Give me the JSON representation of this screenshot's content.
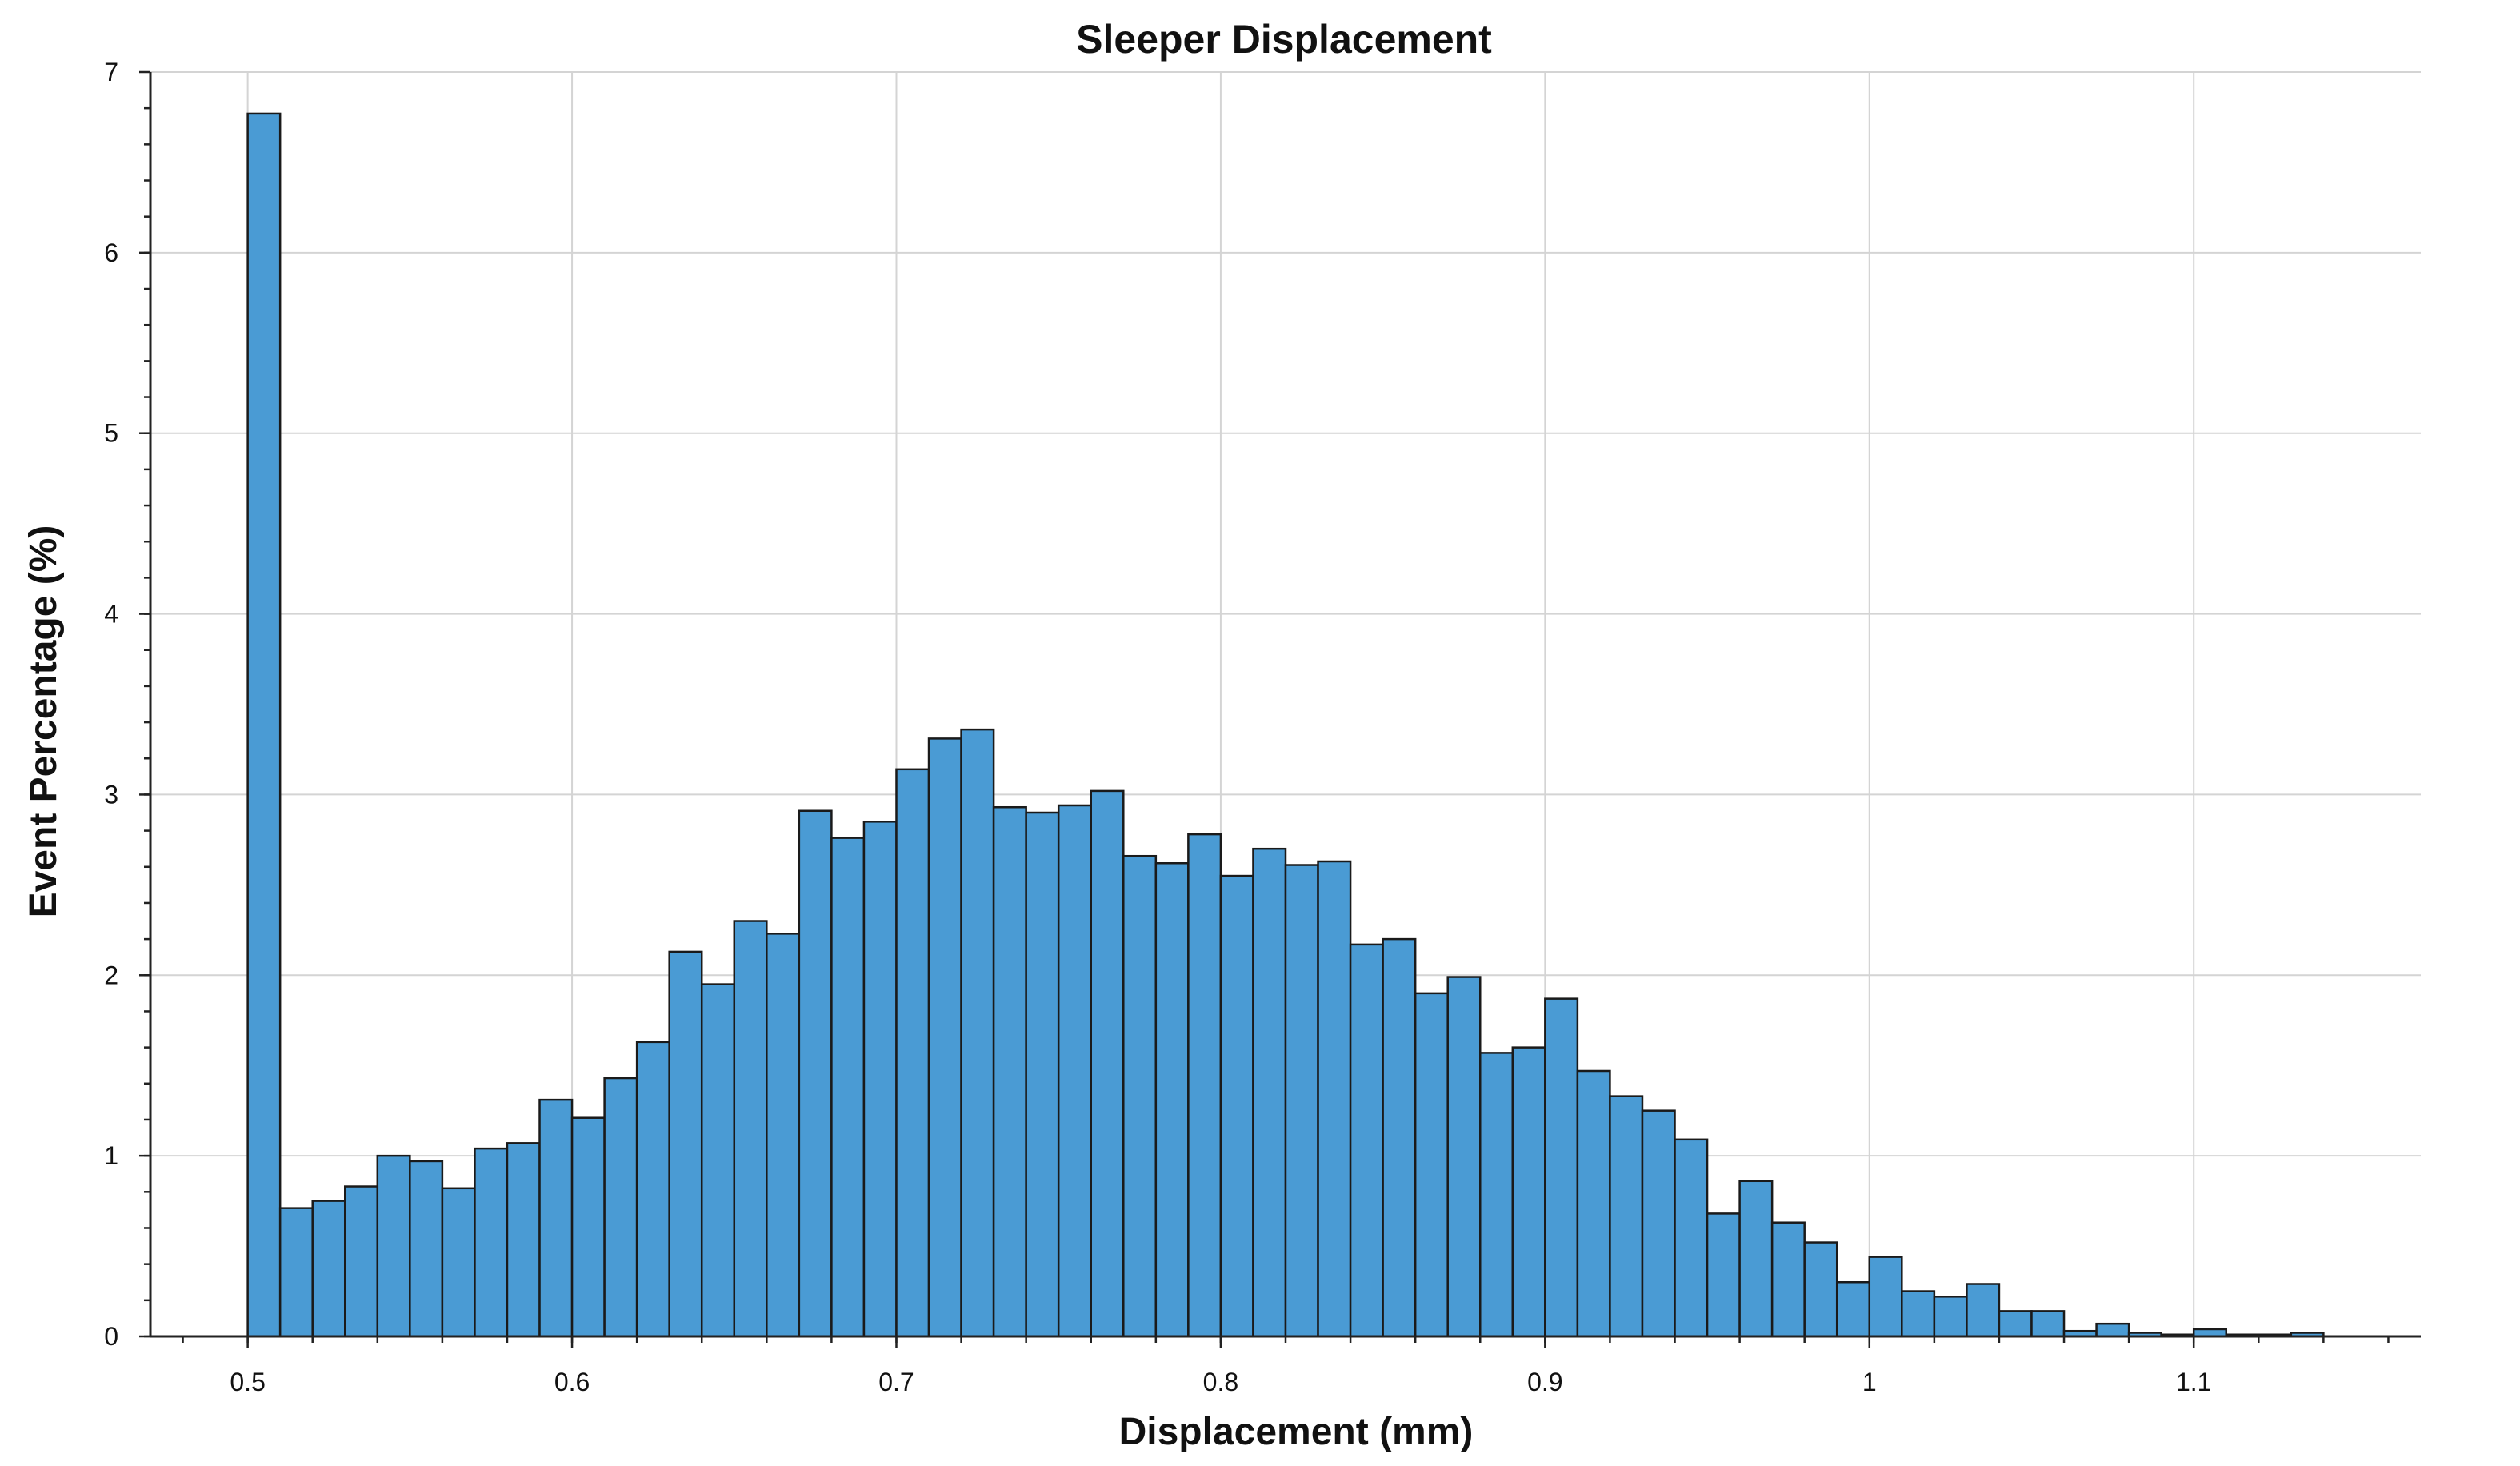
{
  "chart_data": {
    "type": "bar",
    "title": "Sleeper Displacement",
    "xlabel": "Displacement (mm)",
    "ylabel": "Event Percentage (%)",
    "xlim": [
      0.47,
      1.17
    ],
    "ylim": [
      0,
      7
    ],
    "x_ticks": [
      0.5,
      0.6,
      0.7,
      0.8,
      0.9,
      1,
      1.1
    ],
    "x_tick_labels": [
      "0.5",
      "0.6",
      "0.7",
      "0.8",
      "0.9",
      "1",
      "1.1"
    ],
    "y_ticks": [
      0,
      1,
      2,
      3,
      4,
      5,
      6,
      7
    ],
    "y_tick_labels": [
      "0",
      "1",
      "2",
      "3",
      "4",
      "5",
      "6",
      "7"
    ],
    "grid": true,
    "bar_color": "#4a9bd4",
    "bin_width": 0.01,
    "bin_starts": [
      0.5,
      0.51,
      0.52,
      0.53,
      0.54,
      0.55,
      0.56,
      0.57,
      0.58,
      0.59,
      0.6,
      0.61,
      0.62,
      0.63,
      0.64,
      0.65,
      0.66,
      0.67,
      0.68,
      0.69,
      0.7,
      0.71,
      0.72,
      0.73,
      0.74,
      0.75,
      0.76,
      0.77,
      0.78,
      0.79,
      0.8,
      0.81,
      0.82,
      0.83,
      0.84,
      0.85,
      0.86,
      0.87,
      0.88,
      0.89,
      0.9,
      0.91,
      0.92,
      0.93,
      0.94,
      0.95,
      0.96,
      0.97,
      0.98,
      0.99,
      1.0,
      1.01,
      1.02,
      1.03,
      1.04,
      1.05,
      1.06,
      1.07,
      1.08,
      1.09,
      1.1,
      1.11,
      1.12,
      1.13
    ],
    "values": [
      6.77,
      0.71,
      0.75,
      0.83,
      1.0,
      0.97,
      0.82,
      1.04,
      1.07,
      1.31,
      1.21,
      1.43,
      1.63,
      2.13,
      1.95,
      2.3,
      2.23,
      2.91,
      2.76,
      2.85,
      3.14,
      3.31,
      3.36,
      2.93,
      2.9,
      2.94,
      3.02,
      2.66,
      2.62,
      2.78,
      2.55,
      2.7,
      2.61,
      2.63,
      2.17,
      2.2,
      1.9,
      1.99,
      1.57,
      1.6,
      1.87,
      1.47,
      1.33,
      1.25,
      1.09,
      0.68,
      0.86,
      0.63,
      0.52,
      0.3,
      0.44,
      0.25,
      0.22,
      0.29,
      0.14,
      0.14,
      0.03,
      0.07,
      0.02,
      0.01,
      0.04,
      0.01,
      0.01,
      0.02
    ]
  }
}
